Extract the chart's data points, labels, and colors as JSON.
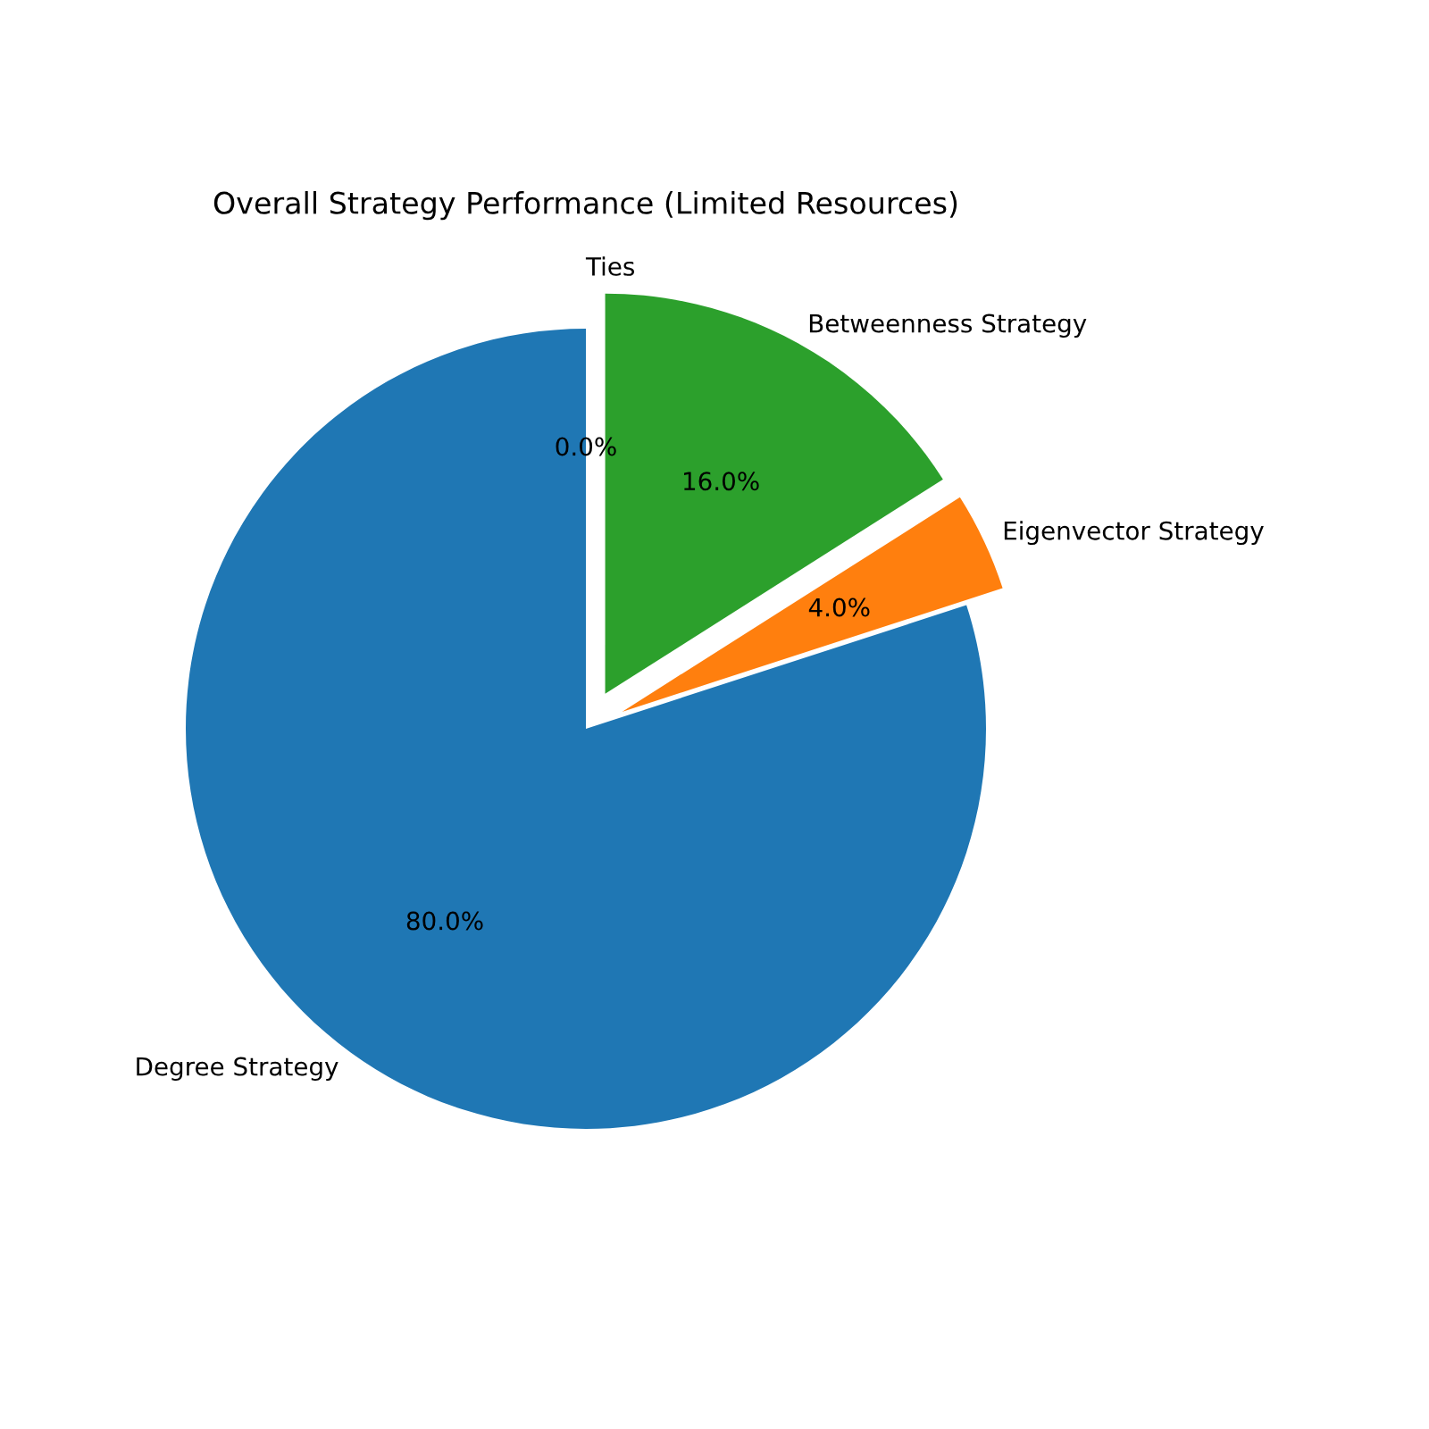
{
  "chart_data": {
    "type": "pie",
    "title": "Overall Strategy Performance (Limited Resources)",
    "categories": [
      "Degree Strategy",
      "Eigenvector Strategy",
      "Betweenness Strategy",
      "Ties"
    ],
    "values": [
      80,
      4,
      16,
      0
    ],
    "colors": [
      "#1f77b4",
      "#ff7f0e",
      "#2ca02c",
      "#d62728"
    ],
    "value_labels": [
      "80.0%",
      "4.0%",
      "16.0%",
      "0.0%"
    ]
  }
}
